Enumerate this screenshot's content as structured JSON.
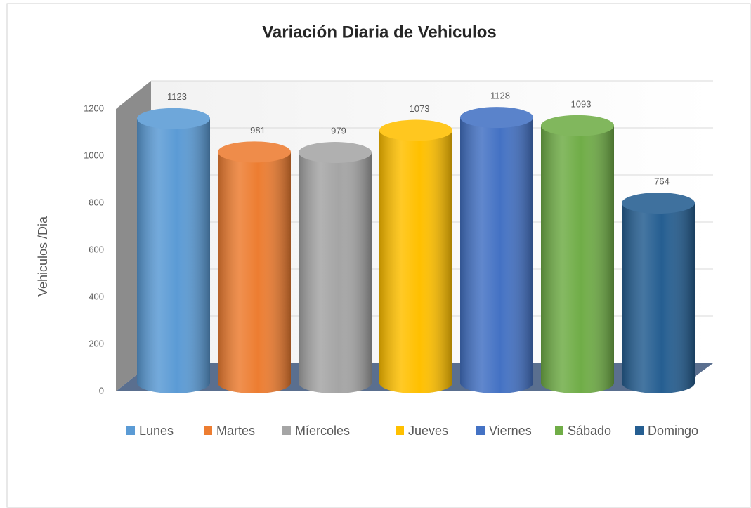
{
  "chart_data": {
    "type": "bar3d",
    "title": "Variación Diaria de Vehiculos",
    "y_label": "Vehiculos /Dia",
    "categories": [
      "Lunes",
      "Martes",
      "Míercoles",
      "Jueves",
      "Viernes",
      "Sábado",
      "Domingo"
    ],
    "values": [
      1123,
      981,
      979,
      1073,
      1128,
      1093,
      764
    ],
    "colors": [
      "#5b9bd5",
      "#ed7d31",
      "#a5a5a5",
      "#ffc000",
      "#4472c4",
      "#70ad47",
      "#255e91"
    ],
    "ylim": [
      0,
      1200
    ],
    "yticks": [
      0,
      200,
      400,
      600,
      800,
      1000,
      1200
    ],
    "grid": true,
    "legend": "bottom"
  }
}
